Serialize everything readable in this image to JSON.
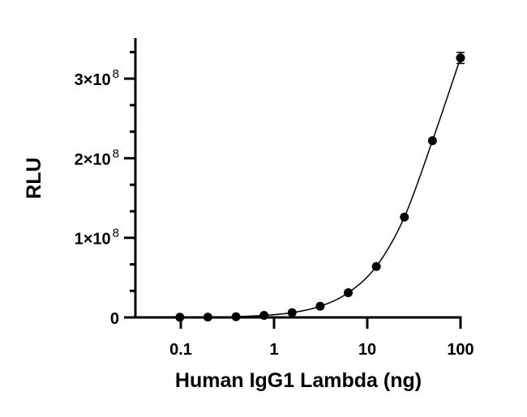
{
  "chart_data": {
    "type": "scatter",
    "title": "",
    "xlabel": "Human IgG1 Lambda (ng)",
    "ylabel": "RLU",
    "xscale": "log",
    "xlim": [
      0.03,
      100
    ],
    "ylim": [
      0,
      350000000
    ],
    "x_ticks": [
      {
        "value": 0.1,
        "label": "0.1"
      },
      {
        "value": 1,
        "label": "1"
      },
      {
        "value": 10,
        "label": "10"
      },
      {
        "value": 100,
        "label": "100"
      }
    ],
    "y_ticks": [
      {
        "value": 0,
        "label": "0",
        "base": "0",
        "exp": ""
      },
      {
        "value": 100000000,
        "label": "1×10^8",
        "base": "1×10",
        "exp": "8"
      },
      {
        "value": 200000000,
        "label": "2×10^8",
        "base": "2×10",
        "exp": "8"
      },
      {
        "value": 300000000,
        "label": "3×10^8",
        "base": "3×10",
        "exp": "8"
      }
    ],
    "grid": false,
    "legend": null,
    "series": [
      {
        "name": "Human IgG1 Lambda",
        "marker": "filled-circle",
        "color": "#000000",
        "fit": "sigmoidal curve",
        "x": [
          0.0977,
          0.195,
          0.391,
          0.781,
          1.5625,
          3.125,
          6.25,
          12.5,
          25,
          50,
          100
        ],
        "values": [
          200000,
          400000,
          900000,
          2500000,
          6000000,
          14000000,
          31000000,
          64000000,
          126000000,
          222000000,
          326000000
        ],
        "error": [
          0,
          0,
          0,
          0,
          0,
          0,
          0,
          0,
          0,
          0,
          7000000
        ]
      }
    ]
  }
}
